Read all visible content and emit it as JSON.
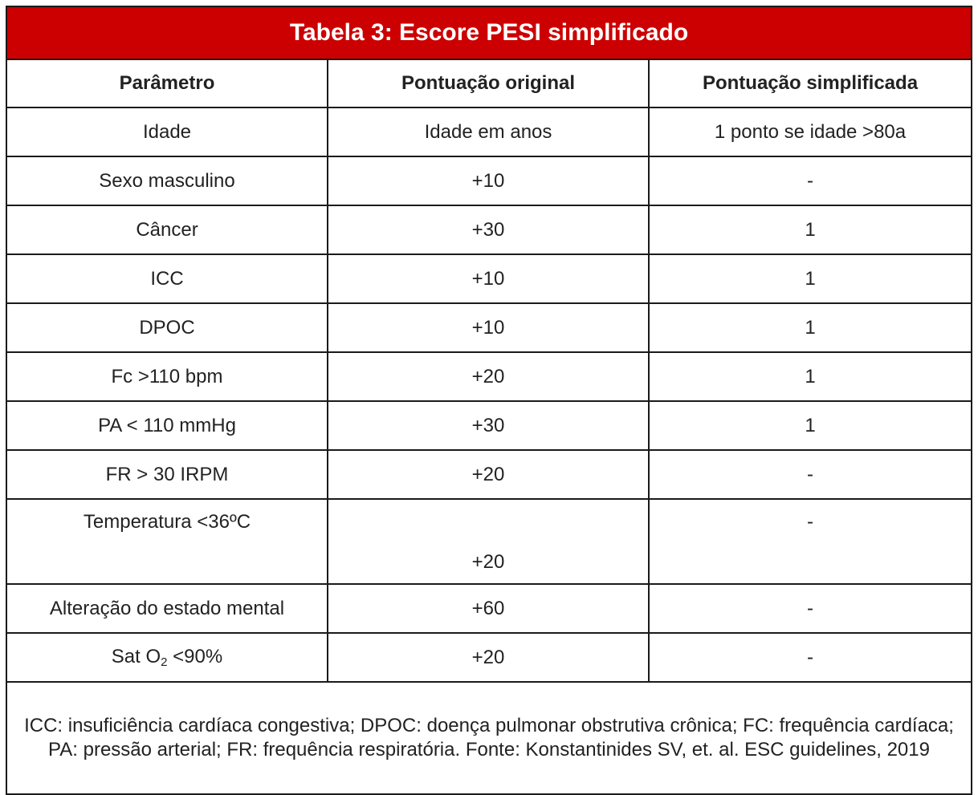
{
  "table": {
    "title": "Tabela 3: Escore PESI simplificado",
    "headers": [
      "Parâmetro",
      "Pontuação original",
      "Pontuação simplificada"
    ],
    "rows": [
      {
        "param": "Idade",
        "original": "Idade em anos",
        "simplified": "1 ponto se idade >80a"
      },
      {
        "param": "Sexo masculino",
        "original": "+10",
        "simplified": "-"
      },
      {
        "param": "Câncer",
        "original": "+30",
        "simplified": "1"
      },
      {
        "param": "ICC",
        "original": "+10",
        "simplified": "1"
      },
      {
        "param": "DPOC",
        "original": "+10",
        "simplified": "1"
      },
      {
        "param": "Fc >110 bpm",
        "original": "+20",
        "simplified": "1"
      },
      {
        "param": "PA < 110 mmHg",
        "original": "+30",
        "simplified": "1"
      },
      {
        "param": "FR > 30 IRPM",
        "original": "+20",
        "simplified": "-"
      },
      {
        "param": "Temperatura <36ºC",
        "original": "+20",
        "simplified": "-"
      },
      {
        "param": "Alteração do estado mental",
        "original": "+60",
        "simplified": "-"
      },
      {
        "param_prefix": "Sat O",
        "param_sub": "2",
        "param_suffix": " <90%",
        "original": "+20",
        "simplified": "-"
      }
    ],
    "footnote": "ICC: insuficiência cardíaca congestiva; DPOC: doença pulmonar obstrutiva crônica; FC: frequência cardíaca; PA: pressão arterial; FR: frequência respiratória. Fonte: Konstantinides SV, et. al. ESC guidelines, 2019"
  },
  "colors": {
    "title_bg": "#cc0000",
    "title_text": "#ffffff",
    "border": "#1a1a1a"
  }
}
